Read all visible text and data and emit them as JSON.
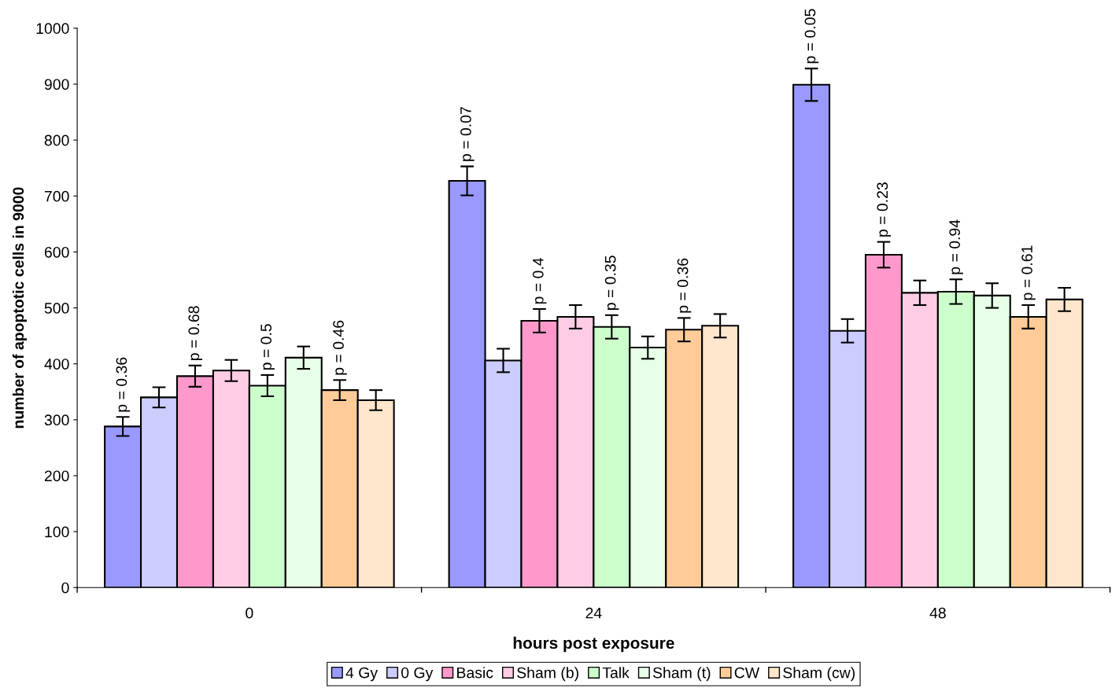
{
  "chart_data": {
    "type": "bar",
    "xlabel": "hours post exposure",
    "ylabel": "number of apoptotic cells in 9000",
    "categories": [
      "0",
      "24",
      "48"
    ],
    "series": [
      {
        "name": "4 Gy",
        "color": "#9999ff",
        "values": [
          288,
          727,
          899
        ],
        "errors": [
          17,
          26,
          29
        ]
      },
      {
        "name": "0 Gy",
        "color": "#ccccff",
        "values": [
          340,
          406,
          459
        ],
        "errors": [
          18,
          21,
          21
        ]
      },
      {
        "name": "Basic",
        "color": "#ff99cc",
        "values": [
          378,
          477,
          595
        ],
        "errors": [
          19,
          21,
          23
        ]
      },
      {
        "name": "Sham (b)",
        "color": "#ffcce6",
        "values": [
          388,
          484,
          527
        ],
        "errors": [
          19,
          21,
          22
        ]
      },
      {
        "name": "Talk",
        "color": "#ccffcc",
        "values": [
          361,
          466,
          529
        ],
        "errors": [
          19,
          21,
          22
        ]
      },
      {
        "name": "Sham (t)",
        "color": "#e6ffe6",
        "values": [
          411,
          429,
          522
        ],
        "errors": [
          20,
          20,
          22
        ]
      },
      {
        "name": "CW",
        "color": "#ffcc99",
        "values": [
          353,
          461,
          484
        ],
        "errors": [
          18,
          21,
          21
        ]
      },
      {
        "name": "Sham (cw)",
        "color": "#ffe6cc",
        "values": [
          335,
          468,
          515
        ],
        "errors": [
          18,
          21,
          21
        ]
      }
    ],
    "annotations": [
      "p = 0.36",
      "p = 0.68",
      "p = 0.5",
      "p = 0.46",
      "p = 0.07",
      "p = 0.4",
      "p = 0.35",
      "p = 0.36",
      "p = 0.05",
      "p = 0.23",
      "p = 0.94",
      "p = 0.61"
    ],
    "ylim": [
      0,
      1000
    ],
    "yticks": [
      0,
      100,
      200,
      300,
      400,
      500,
      600,
      700,
      800,
      900,
      1000
    ],
    "grid": false,
    "legend": "bottom"
  }
}
